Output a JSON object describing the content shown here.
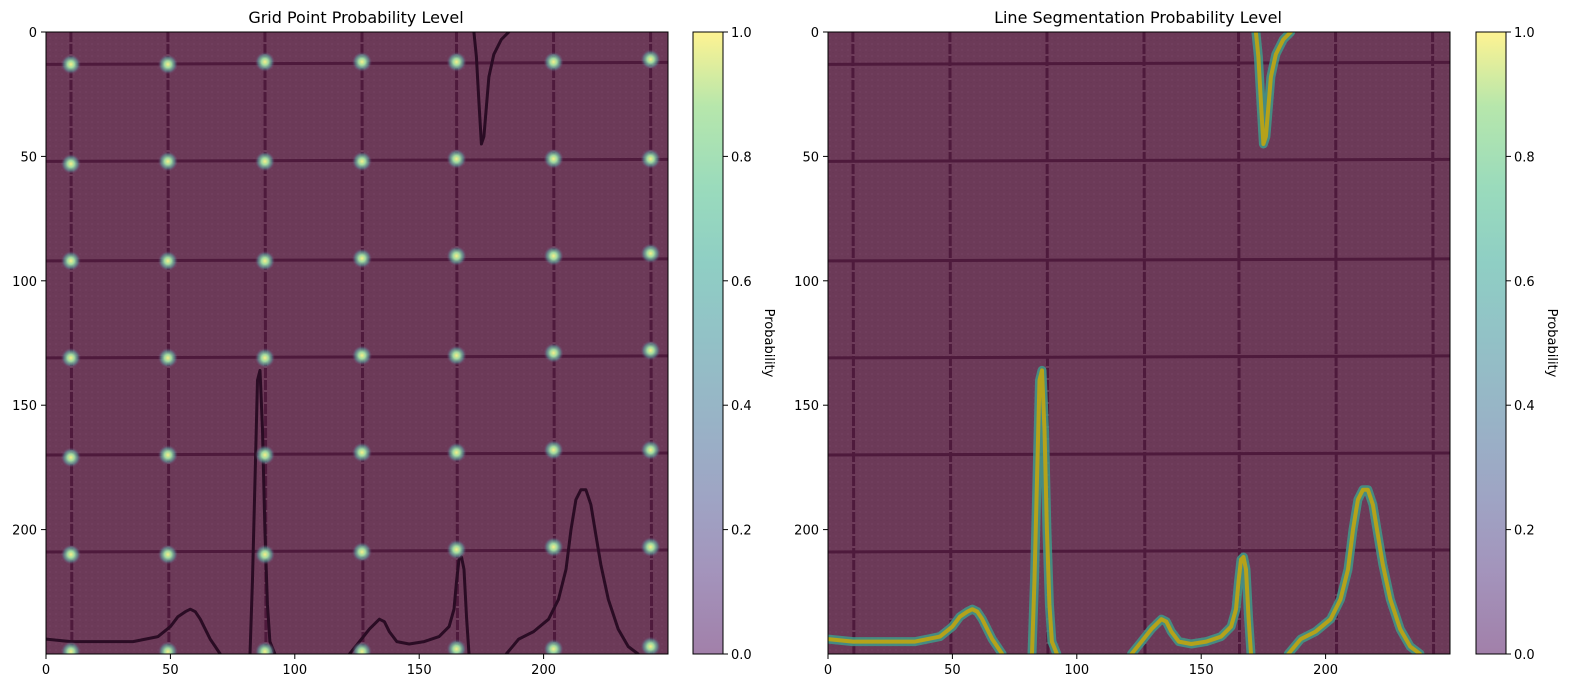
{
  "chart_data": [
    {
      "type": "heatmap",
      "title": "Grid Point Probability Level",
      "xlabel": "",
      "ylabel": "",
      "xlim": [
        0,
        250
      ],
      "ylim": [
        250,
        0
      ],
      "xticks": [
        "0",
        "50",
        "100",
        "150",
        "200"
      ],
      "yticks": [
        "0",
        "50",
        "100",
        "150",
        "200"
      ],
      "grid_v": [
        10,
        49,
        88,
        127,
        165,
        204,
        243
      ],
      "grid_h": [
        13,
        52,
        92,
        131,
        170,
        209
      ],
      "grid_points": [
        [
          10,
          13
        ],
        [
          49,
          13
        ],
        [
          88,
          12
        ],
        [
          127,
          12
        ],
        [
          165,
          12
        ],
        [
          204,
          12
        ],
        [
          243,
          11
        ],
        [
          10,
          53
        ],
        [
          49,
          52
        ],
        [
          88,
          52
        ],
        [
          127,
          52
        ],
        [
          165,
          51
        ],
        [
          204,
          51
        ],
        [
          243,
          51
        ],
        [
          10,
          92
        ],
        [
          49,
          92
        ],
        [
          88,
          92
        ],
        [
          127,
          91
        ],
        [
          165,
          90
        ],
        [
          204,
          90
        ],
        [
          243,
          89
        ],
        [
          10,
          131
        ],
        [
          49,
          131
        ],
        [
          88,
          131
        ],
        [
          127,
          130
        ],
        [
          165,
          130
        ],
        [
          204,
          129
        ],
        [
          243,
          128
        ],
        [
          10,
          171
        ],
        [
          49,
          170
        ],
        [
          88,
          170
        ],
        [
          127,
          169
        ],
        [
          165,
          169
        ],
        [
          204,
          168
        ],
        [
          243,
          168
        ],
        [
          10,
          210
        ],
        [
          49,
          210
        ],
        [
          88,
          210
        ],
        [
          127,
          209
        ],
        [
          165,
          208
        ],
        [
          204,
          207
        ],
        [
          243,
          207
        ],
        [
          10,
          249
        ],
        [
          49,
          249
        ],
        [
          88,
          249
        ],
        [
          127,
          249
        ],
        [
          165,
          248
        ],
        [
          204,
          248
        ],
        [
          243,
          247
        ]
      ],
      "colorbar": {
        "label": "Probability",
        "ticks": [
          "0.0",
          "0.2",
          "0.4",
          "0.6",
          "0.8",
          "1.0"
        ],
        "range": [
          0,
          1
        ],
        "colormap": "viridis",
        "alpha": 0.5
      }
    },
    {
      "type": "heatmap",
      "title": "Line Segmentation Probability Level",
      "xlabel": "",
      "ylabel": "",
      "xlim": [
        0,
        250
      ],
      "ylim": [
        250,
        0
      ],
      "xticks": [
        "0",
        "50",
        "100",
        "150",
        "200"
      ],
      "yticks": [
        "0",
        "50",
        "100",
        "150",
        "200"
      ],
      "grid_v": [
        10,
        49,
        88,
        127,
        165,
        204,
        243
      ],
      "grid_h": [
        13,
        52,
        92,
        131,
        170,
        209
      ],
      "colorbar": {
        "label": "Probability",
        "ticks": [
          "0.0",
          "0.2",
          "0.4",
          "0.6",
          "0.8",
          "1.0"
        ],
        "range": [
          0,
          1
        ],
        "colormap": "viridis",
        "alpha": 0.5
      }
    }
  ],
  "ecg_trace": [
    [
      0,
      244
    ],
    [
      10,
      245
    ],
    [
      20,
      245
    ],
    [
      30,
      245
    ],
    [
      35,
      245
    ],
    [
      40,
      244
    ],
    [
      45,
      243
    ],
    [
      50,
      239
    ],
    [
      53,
      235
    ],
    [
      56,
      233
    ],
    [
      58,
      232
    ],
    [
      60,
      233
    ],
    [
      62,
      236
    ],
    [
      64,
      240
    ],
    [
      66,
      244
    ],
    [
      68,
      247
    ],
    [
      70,
      250
    ]
  ],
  "ecg_trace_2": [
    [
      82,
      250
    ],
    [
      83,
      220
    ],
    [
      84,
      180
    ],
    [
      85,
      140
    ],
    [
      86,
      136
    ],
    [
      87,
      160
    ],
    [
      88,
      200
    ],
    [
      89,
      230
    ],
    [
      90,
      245
    ],
    [
      92,
      250
    ]
  ],
  "ecg_trace_3": [
    [
      122,
      250
    ],
    [
      126,
      245
    ],
    [
      130,
      240
    ],
    [
      134,
      236
    ],
    [
      136,
      237
    ],
    [
      138,
      241
    ],
    [
      141,
      245
    ],
    [
      146,
      246
    ],
    [
      152,
      245
    ],
    [
      158,
      243
    ],
    [
      162,
      239
    ],
    [
      164,
      232
    ],
    [
      165,
      221
    ],
    [
      166,
      212
    ],
    [
      167,
      211
    ],
    [
      168,
      216
    ],
    [
      169,
      235
    ],
    [
      170,
      250
    ]
  ],
  "ecg_trace_4": [
    [
      185,
      250
    ],
    [
      190,
      244
    ],
    [
      196,
      241
    ],
    [
      202,
      236
    ],
    [
      206,
      228
    ],
    [
      209,
      216
    ],
    [
      211,
      200
    ],
    [
      213,
      188
    ],
    [
      215,
      184
    ],
    [
      217,
      184
    ],
    [
      219,
      190
    ],
    [
      221,
      202
    ],
    [
      223,
      214
    ],
    [
      226,
      228
    ],
    [
      230,
      240
    ],
    [
      234,
      247
    ],
    [
      238,
      250
    ]
  ],
  "ecg_trace_5": [
    [
      172,
      0
    ],
    [
      173,
      10
    ],
    [
      174,
      28
    ],
    [
      175,
      45
    ],
    [
      176,
      42
    ],
    [
      177,
      30
    ],
    [
      178,
      18
    ],
    [
      180,
      9
    ],
    [
      183,
      3
    ],
    [
      186,
      0
    ]
  ]
}
